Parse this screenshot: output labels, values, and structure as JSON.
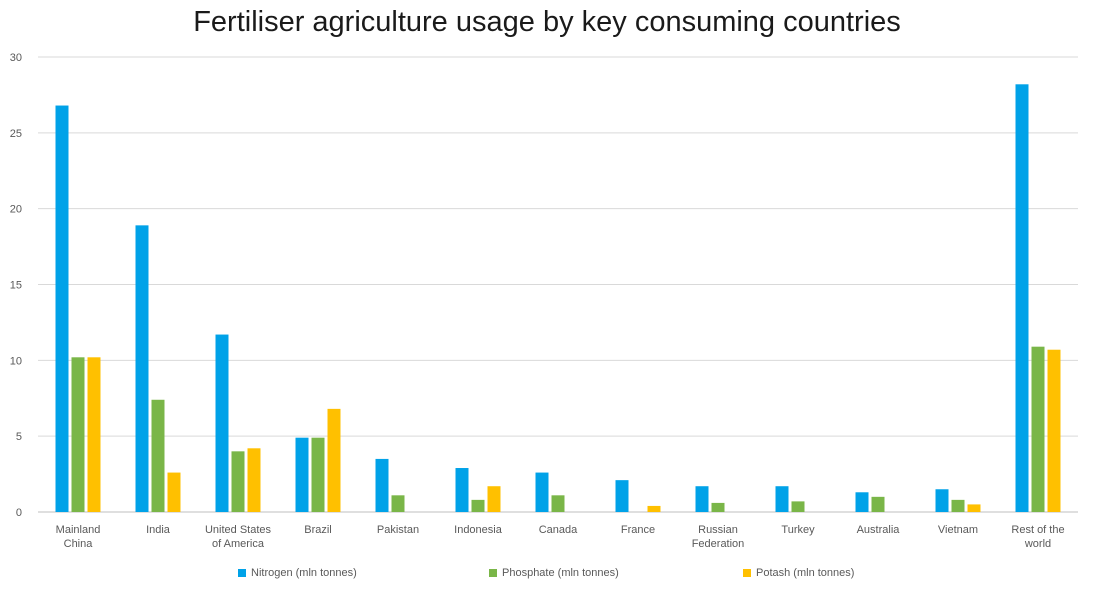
{
  "chart_data": {
    "type": "bar",
    "title": "Fertiliser agriculture usage by key consuming countries",
    "categories": [
      [
        "Mainland",
        "China"
      ],
      [
        "India"
      ],
      [
        "United States",
        "of America"
      ],
      [
        "Brazil"
      ],
      [
        "Pakistan"
      ],
      [
        "Indonesia"
      ],
      [
        "Canada"
      ],
      [
        "France"
      ],
      [
        "Russian",
        "Federation"
      ],
      [
        "Turkey"
      ],
      [
        "Australia"
      ],
      [
        "Vietnam"
      ],
      [
        "Rest of the",
        "world"
      ]
    ],
    "series": [
      {
        "name": "Nitrogen (mln tonnes)",
        "color": "#00a2e8",
        "values": [
          26.8,
          18.9,
          11.7,
          4.9,
          3.5,
          2.9,
          2.6,
          2.1,
          1.7,
          1.7,
          1.3,
          1.5,
          28.2
        ]
      },
      {
        "name": "Phosphate (mln tonnes)",
        "color": "#7ab648",
        "values": [
          10.2,
          7.4,
          4.0,
          4.9,
          1.1,
          0.8,
          1.1,
          0.0,
          0.6,
          0.7,
          1.0,
          0.8,
          10.9
        ]
      },
      {
        "name": "Potash (mln tonnes)",
        "color": "#ffc000",
        "values": [
          10.2,
          2.6,
          4.2,
          6.8,
          0.0,
          1.7,
          0.0,
          0.4,
          0.0,
          0.0,
          0.0,
          0.5,
          10.7
        ]
      }
    ],
    "yticks": [
      "0",
      "5",
      "10",
      "15",
      "20",
      "25",
      "30"
    ],
    "ylim": [
      0,
      30
    ],
    "grid": true,
    "legend": "bottom"
  }
}
